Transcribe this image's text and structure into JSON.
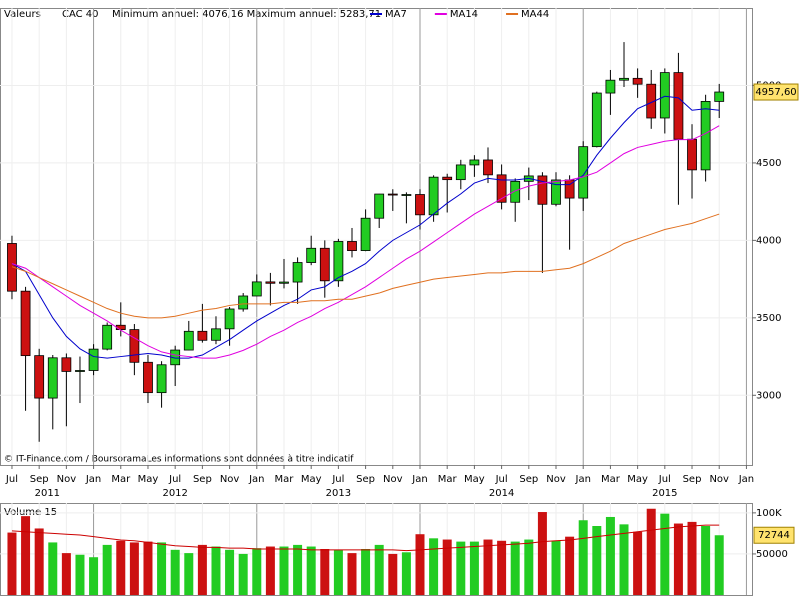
{
  "chart_data": {
    "type": "candlestick",
    "panel_label": "Valeurs",
    "instrument": "CAC 40",
    "range_text": "Minimum annuel: 4076,16 Maximum annuel: 5283,71",
    "credit": "© IT-Finance.com / BoursoramaLes informations sont données à titre indicatif",
    "up_color": "#22cc22",
    "down_color": "#cc1111",
    "grid": true,
    "xlim": [
      -0.88,
      54.41
    ],
    "xticks": [
      {
        "value": 0,
        "label": "Jul"
      },
      {
        "value": 2,
        "label": "Sep"
      },
      {
        "value": 4,
        "label": "Nov"
      },
      {
        "value": 6,
        "label": "Jan"
      },
      {
        "value": 8,
        "label": "Mar"
      },
      {
        "value": 10,
        "label": "May"
      },
      {
        "value": 12,
        "label": "Jul"
      },
      {
        "value": 14,
        "label": "Sep"
      },
      {
        "value": 16,
        "label": "Nov"
      },
      {
        "value": 18,
        "label": "Jan"
      },
      {
        "value": 20,
        "label": "Mar"
      },
      {
        "value": 22,
        "label": "May"
      },
      {
        "value": 24,
        "label": "Jul"
      },
      {
        "value": 26,
        "label": "Sep"
      },
      {
        "value": 28,
        "label": "Nov"
      },
      {
        "value": 30,
        "label": "Jan"
      },
      {
        "value": 32,
        "label": "Mar"
      },
      {
        "value": 34,
        "label": "May"
      },
      {
        "value": 36,
        "label": "Jul"
      },
      {
        "value": 38,
        "label": "Sep"
      },
      {
        "value": 40,
        "label": "Nov"
      },
      {
        "value": 42,
        "label": "Jan"
      },
      {
        "value": 44,
        "label": "Mar"
      },
      {
        "value": 46,
        "label": "May"
      },
      {
        "value": 48,
        "label": "Jul"
      },
      {
        "value": 50,
        "label": "Sep"
      },
      {
        "value": 52,
        "label": "Nov"
      },
      {
        "value": 54,
        "label": "Jan"
      }
    ],
    "year_labels": [
      {
        "value": 2.6,
        "label": "2011"
      },
      {
        "value": 12,
        "label": "2012"
      },
      {
        "value": 24,
        "label": "2013"
      },
      {
        "value": 36,
        "label": "2014"
      },
      {
        "value": 48,
        "label": "2015"
      }
    ],
    "ylim": [
      2550,
      5500
    ],
    "yticks": [
      3000,
      3500,
      4000,
      4500,
      5000
    ],
    "open": [
      3980,
      3672,
      3256,
      2982,
      3242,
      3154,
      3160,
      3298,
      3452,
      3424,
      3213,
      3017,
      3197,
      3292,
      3413,
      3355,
      3429,
      3557,
      3641,
      3732,
      3723,
      3731,
      3857,
      3949,
      3739,
      3993,
      3934,
      4143,
      4299,
      4295,
      4296,
      4165,
      4408,
      4392,
      4487,
      4519,
      4423,
      4246,
      4381,
      4416,
      4233,
      4390,
      4273,
      4605,
      4951,
      5034,
      5046,
      5008,
      4790,
      5083,
      4653,
      4455,
      4897
    ],
    "high": [
      4030,
      3700,
      3300,
      3260,
      3270,
      3250,
      3330,
      3470,
      3600,
      3460,
      3260,
      3220,
      3320,
      3480,
      3590,
      3510,
      3570,
      3660,
      3780,
      3790,
      3880,
      3890,
      4030,
      4000,
      4010,
      4080,
      4200,
      4300,
      4330,
      4310,
      4330,
      4420,
      4430,
      4520,
      4550,
      4600,
      4490,
      4400,
      4470,
      4440,
      4440,
      4420,
      4640,
      4960,
      5100,
      5280,
      5110,
      5100,
      5110,
      5210,
      4750,
      4940,
      5010
    ],
    "low": [
      3620,
      2900,
      2700,
      2780,
      2800,
      2950,
      3130,
      3290,
      3380,
      3130,
      2950,
      2920,
      3060,
      3290,
      3340,
      3330,
      3320,
      3540,
      3640,
      3580,
      3690,
      3590,
      3840,
      3630,
      3700,
      3890,
      3930,
      4080,
      4190,
      4110,
      4070,
      4120,
      4180,
      4330,
      4410,
      4370,
      4200,
      4120,
      4260,
      3790,
      4220,
      3940,
      4190,
      4600,
      4810,
      4990,
      4920,
      4720,
      4690,
      4230,
      4270,
      4380,
      4790
    ],
    "close": [
      3672,
      3256,
      2982,
      3242,
      3154,
      3160,
      3298,
      3452,
      3424,
      3213,
      3017,
      3197,
      3292,
      3413,
      3355,
      3429,
      3557,
      3641,
      3732,
      3723,
      3731,
      3857,
      3949,
      3739,
      3993,
      3934,
      4143,
      4299,
      4295,
      4296,
      4165,
      4408,
      4392,
      4487,
      4519,
      4423,
      4246,
      4381,
      4416,
      4233,
      4390,
      4273,
      4605,
      4951,
      5034,
      5046,
      5008,
      4790,
      5083,
      4653,
      4455,
      4897,
      4957.6
    ],
    "last_label": "4957,60",
    "series": [
      {
        "name": "MA7",
        "color": "#0000cc",
        "values": [
          3850,
          3800,
          3650,
          3500,
          3380,
          3300,
          3250,
          3240,
          3250,
          3260,
          3270,
          3260,
          3240,
          3240,
          3260,
          3310,
          3360,
          3420,
          3480,
          3530,
          3580,
          3620,
          3680,
          3700,
          3760,
          3800,
          3850,
          3930,
          4000,
          4050,
          4100,
          4170,
          4240,
          4300,
          4370,
          4400,
          4390,
          4390,
          4400,
          4380,
          4360,
          4360,
          4420,
          4550,
          4660,
          4760,
          4850,
          4890,
          4930,
          4920,
          4840,
          4850,
          4840
        ]
      },
      {
        "name": "MA14",
        "color": "#e000e0",
        "values": [
          3850,
          3820,
          3760,
          3700,
          3640,
          3580,
          3530,
          3480,
          3420,
          3370,
          3320,
          3280,
          3260,
          3250,
          3240,
          3240,
          3260,
          3290,
          3330,
          3380,
          3420,
          3470,
          3510,
          3560,
          3600,
          3650,
          3700,
          3760,
          3820,
          3880,
          3930,
          3990,
          4050,
          4110,
          4170,
          4220,
          4270,
          4320,
          4350,
          4370,
          4380,
          4390,
          4410,
          4440,
          4500,
          4560,
          4600,
          4620,
          4640,
          4650,
          4650,
          4690,
          4740
        ]
      },
      {
        "name": "MA44",
        "color": "#e07020",
        "values": [
          3830,
          3800,
          3760,
          3720,
          3680,
          3640,
          3600,
          3560,
          3530,
          3510,
          3500,
          3500,
          3510,
          3530,
          3550,
          3560,
          3580,
          3590,
          3590,
          3590,
          3600,
          3600,
          3610,
          3610,
          3620,
          3620,
          3640,
          3660,
          3690,
          3710,
          3730,
          3750,
          3760,
          3770,
          3780,
          3790,
          3790,
          3800,
          3800,
          3800,
          3810,
          3820,
          3850,
          3890,
          3930,
          3980,
          4010,
          4040,
          4070,
          4090,
          4110,
          4140,
          4170
        ]
      }
    ],
    "volume": {
      "name": "Volume 15",
      "ylim": [
        0,
        112000
      ],
      "yticks": [
        {
          "value": 100000,
          "label": "100K"
        },
        50000
      ],
      "values": [
        76000,
        96000,
        81000,
        64000,
        51000,
        49000,
        46000,
        61000,
        66000,
        64000,
        65000,
        64000,
        55000,
        51000,
        61000,
        59000,
        55000,
        50000,
        57000,
        59000,
        59000,
        61000,
        59000,
        56000,
        55000,
        51000,
        56000,
        61000,
        50000,
        52000,
        74000,
        69000,
        67500,
        65000,
        65000,
        67500,
        66000,
        65000,
        67500,
        101000,
        66000,
        71000,
        91000,
        84000,
        95000,
        86000,
        77000,
        105000,
        99000,
        87000,
        89000,
        84000,
        72744
      ],
      "ma_color": "#cc0000",
      "ma": [
        78000,
        77000,
        76000,
        75000,
        74000,
        73000,
        71000,
        69000,
        67000,
        66000,
        64000,
        62000,
        60000,
        59000,
        58000,
        58000,
        57000,
        57000,
        56000,
        56000,
        56000,
        56000,
        55000,
        55000,
        55000,
        55000,
        55000,
        55000,
        55000,
        54000,
        55000,
        56000,
        57000,
        58000,
        59000,
        60000,
        61000,
        62000,
        63000,
        65000,
        66000,
        67000,
        69000,
        71000,
        73000,
        75000,
        77000,
        79000,
        81000,
        83000,
        84000,
        85000,
        85000
      ]
    }
  }
}
